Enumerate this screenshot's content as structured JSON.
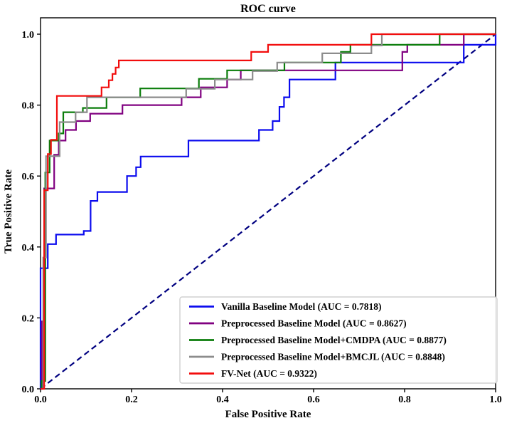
{
  "figure": {
    "title": "ROC curve",
    "xlabel": "False Positive Rate",
    "ylabel": "True Positive Rate"
  },
  "chart_data": {
    "type": "line",
    "subtype": "roc-step-curves",
    "title": "ROC curve",
    "xlabel": "False Positive Rate",
    "ylabel": "True Positive Rate",
    "xlim": [
      0.0,
      1.0
    ],
    "ylim": [
      0.0,
      1.05
    ],
    "grid": false,
    "legend_position": "lower right",
    "x_ticks": [
      {
        "value": 0.0,
        "label": "0.0"
      },
      {
        "value": 0.2,
        "label": "0.2"
      },
      {
        "value": 0.4,
        "label": "0.4"
      },
      {
        "value": 0.6,
        "label": "0.6"
      },
      {
        "value": 0.8,
        "label": "0.8"
      },
      {
        "value": 1.0,
        "label": "1.0"
      }
    ],
    "y_ticks": [
      {
        "value": 0.0,
        "label": "0.0"
      },
      {
        "value": 0.2,
        "label": "0.2"
      },
      {
        "value": 0.4,
        "label": "0.4"
      },
      {
        "value": 0.6,
        "label": "0.6"
      },
      {
        "value": 0.8,
        "label": "0.8"
      },
      {
        "value": 1.0,
        "label": "1.0"
      }
    ],
    "diagonal": {
      "name": "chance-line",
      "from": [
        0.0,
        0.0
      ],
      "to": [
        1.0,
        1.0
      ],
      "color": "#000080",
      "style": "dashed"
    },
    "series": [
      {
        "id": "vanilla-baseline",
        "name": "Vanilla Baseline Model",
        "auc": 0.7818,
        "color": "#0b0bee",
        "points": [
          [
            0,
            0
          ],
          [
            0,
            0.34
          ],
          [
            0.016,
            0.34
          ],
          [
            0.016,
            0.408
          ],
          [
            0.034,
            0.408
          ],
          [
            0.034,
            0.435
          ],
          [
            0.095,
            0.435
          ],
          [
            0.095,
            0.445
          ],
          [
            0.11,
            0.445
          ],
          [
            0.11,
            0.53
          ],
          [
            0.125,
            0.53
          ],
          [
            0.125,
            0.555
          ],
          [
            0.19,
            0.555
          ],
          [
            0.19,
            0.6
          ],
          [
            0.21,
            0.6
          ],
          [
            0.21,
            0.625
          ],
          [
            0.22,
            0.625
          ],
          [
            0.22,
            0.655
          ],
          [
            0.325,
            0.655
          ],
          [
            0.325,
            0.7
          ],
          [
            0.48,
            0.7
          ],
          [
            0.48,
            0.73
          ],
          [
            0.51,
            0.73
          ],
          [
            0.51,
            0.755
          ],
          [
            0.525,
            0.755
          ],
          [
            0.525,
            0.795
          ],
          [
            0.535,
            0.795
          ],
          [
            0.535,
            0.822
          ],
          [
            0.547,
            0.822
          ],
          [
            0.547,
            0.872
          ],
          [
            0.648,
            0.872
          ],
          [
            0.648,
            0.92
          ],
          [
            0.93,
            0.92
          ],
          [
            0.93,
            0.97
          ],
          [
            1.0,
            0.97
          ],
          [
            1.0,
            1.0
          ]
        ]
      },
      {
        "id": "preprocessed-baseline",
        "name": "Preprocessed Baseline Model",
        "auc": 0.8627,
        "color": "#800080",
        "points": [
          [
            0,
            0
          ],
          [
            0.003,
            0
          ],
          [
            0.003,
            0.19
          ],
          [
            0.008,
            0.19
          ],
          [
            0.008,
            0.565
          ],
          [
            0.03,
            0.565
          ],
          [
            0.03,
            0.66
          ],
          [
            0.04,
            0.66
          ],
          [
            0.04,
            0.7
          ],
          [
            0.055,
            0.7
          ],
          [
            0.055,
            0.73
          ],
          [
            0.078,
            0.73
          ],
          [
            0.078,
            0.755
          ],
          [
            0.109,
            0.755
          ],
          [
            0.109,
            0.776
          ],
          [
            0.18,
            0.776
          ],
          [
            0.18,
            0.8
          ],
          [
            0.31,
            0.8
          ],
          [
            0.31,
            0.822
          ],
          [
            0.352,
            0.822
          ],
          [
            0.352,
            0.85
          ],
          [
            0.41,
            0.85
          ],
          [
            0.41,
            0.872
          ],
          [
            0.44,
            0.872
          ],
          [
            0.44,
            0.898
          ],
          [
            0.795,
            0.898
          ],
          [
            0.795,
            0.95
          ],
          [
            0.806,
            0.95
          ],
          [
            0.806,
            0.97
          ],
          [
            0.93,
            0.97
          ],
          [
            0.93,
            1.0
          ],
          [
            1.0,
            1.0
          ]
        ]
      },
      {
        "id": "preprocessed-baseline-cmdpa",
        "name": "Preprocessed Baseline Model+CMDPA",
        "auc": 0.8877,
        "color": "#0b7d0b",
        "points": [
          [
            0,
            0
          ],
          [
            0.002,
            0
          ],
          [
            0.002,
            0.022
          ],
          [
            0.0105,
            0.022
          ],
          [
            0.0105,
            0.61
          ],
          [
            0.02,
            0.61
          ],
          [
            0.02,
            0.7
          ],
          [
            0.04,
            0.7
          ],
          [
            0.04,
            0.72
          ],
          [
            0.05,
            0.72
          ],
          [
            0.05,
            0.78
          ],
          [
            0.093,
            0.78
          ],
          [
            0.093,
            0.792
          ],
          [
            0.145,
            0.792
          ],
          [
            0.145,
            0.822
          ],
          [
            0.219,
            0.822
          ],
          [
            0.219,
            0.847
          ],
          [
            0.348,
            0.847
          ],
          [
            0.348,
            0.874
          ],
          [
            0.41,
            0.874
          ],
          [
            0.41,
            0.898
          ],
          [
            0.536,
            0.898
          ],
          [
            0.536,
            0.92
          ],
          [
            0.66,
            0.92
          ],
          [
            0.66,
            0.95
          ],
          [
            0.681,
            0.95
          ],
          [
            0.681,
            0.97
          ],
          [
            0.877,
            0.97
          ],
          [
            0.877,
            1.0
          ],
          [
            1.0,
            1.0
          ]
        ]
      },
      {
        "id": "preprocessed-baseline-bmcjl",
        "name": "Preprocessed Baseline Model+BMCJL",
        "auc": 0.8848,
        "color": "#8c8c8c",
        "points": [
          [
            0,
            0
          ],
          [
            0.006,
            0
          ],
          [
            0.006,
            0.37
          ],
          [
            0.012,
            0.37
          ],
          [
            0.012,
            0.656
          ],
          [
            0.042,
            0.656
          ],
          [
            0.042,
            0.752
          ],
          [
            0.077,
            0.752
          ],
          [
            0.077,
            0.78
          ],
          [
            0.102,
            0.78
          ],
          [
            0.102,
            0.822
          ],
          [
            0.32,
            0.822
          ],
          [
            0.32,
            0.846
          ],
          [
            0.383,
            0.846
          ],
          [
            0.383,
            0.872
          ],
          [
            0.466,
            0.872
          ],
          [
            0.466,
            0.896
          ],
          [
            0.52,
            0.896
          ],
          [
            0.52,
            0.92
          ],
          [
            0.619,
            0.92
          ],
          [
            0.619,
            0.946
          ],
          [
            0.727,
            0.946
          ],
          [
            0.727,
            0.968
          ],
          [
            0.75,
            0.968
          ],
          [
            0.75,
            1.0
          ],
          [
            1.0,
            1.0
          ]
        ]
      },
      {
        "id": "fv-net",
        "name": "FV-Net",
        "auc": 0.9322,
        "color": "#f20d0d",
        "points": [
          [
            0,
            0
          ],
          [
            0.008,
            0
          ],
          [
            0.008,
            0.56
          ],
          [
            0.016,
            0.56
          ],
          [
            0.016,
            0.662
          ],
          [
            0.023,
            0.662
          ],
          [
            0.023,
            0.702
          ],
          [
            0.036,
            0.702
          ],
          [
            0.036,
            0.826
          ],
          [
            0.134,
            0.826
          ],
          [
            0.134,
            0.85
          ],
          [
            0.15,
            0.85
          ],
          [
            0.15,
            0.87
          ],
          [
            0.158,
            0.87
          ],
          [
            0.158,
            0.888
          ],
          [
            0.165,
            0.888
          ],
          [
            0.165,
            0.906
          ],
          [
            0.172,
            0.906
          ],
          [
            0.172,
            0.926
          ],
          [
            0.463,
            0.926
          ],
          [
            0.463,
            0.95
          ],
          [
            0.5,
            0.95
          ],
          [
            0.5,
            0.97
          ],
          [
            0.727,
            0.97
          ],
          [
            0.727,
            1.0
          ],
          [
            1.0,
            1.0
          ]
        ]
      }
    ]
  },
  "legend": {
    "entries": [
      {
        "id": "vanilla-baseline",
        "label": "Vanilla Baseline Model (AUC = 0.7818)",
        "color": "#0b0bee"
      },
      {
        "id": "preprocessed-baseline",
        "label": "Preprocessed Baseline Model (AUC = 0.8627)",
        "color": "#800080"
      },
      {
        "id": "preprocessed-baseline-cmdpa",
        "label": "Preprocessed Baseline Model+CMDPA (AUC = 0.8877)",
        "color": "#0b7d0b"
      },
      {
        "id": "preprocessed-baseline-bmcjl",
        "label": "Preprocessed Baseline Model+BMCJL (AUC = 0.8848)",
        "color": "#8c8c8c"
      },
      {
        "id": "fv-net",
        "label": "FV-Net (AUC = 0.9322)",
        "color": "#f20d0d"
      }
    ]
  }
}
